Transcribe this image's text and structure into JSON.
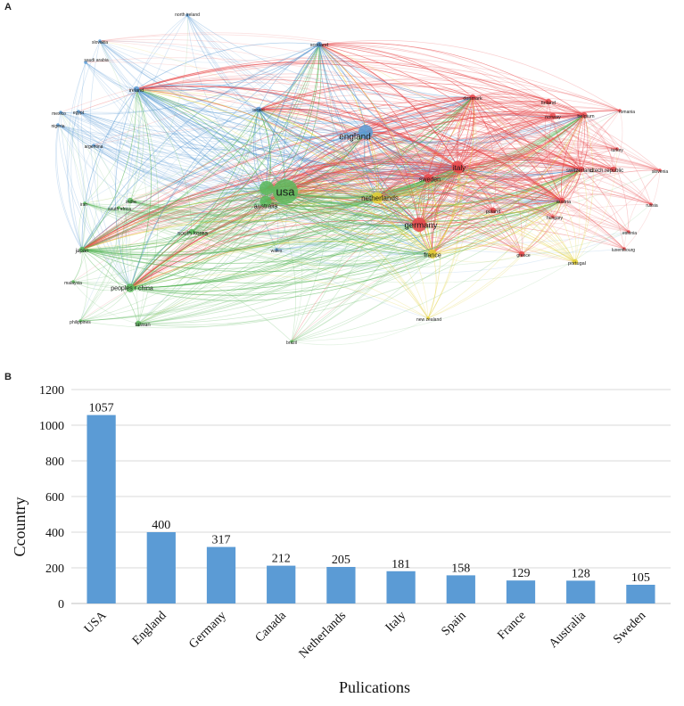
{
  "panels": {
    "a": "A",
    "b": "B"
  },
  "colors": {
    "blue": "#5b9bd5",
    "green": "#5cb85c",
    "red": "#e8474a",
    "yellow": "#e3cf34",
    "bar": "#5b9bd5",
    "grid": "#d9d9d9"
  },
  "network": {
    "nodes": [
      {
        "id": "usa",
        "label": "usa",
        "cluster": "green",
        "weight": 10
      },
      {
        "id": "england",
        "label": "england",
        "cluster": "blue",
        "weight": 6
      },
      {
        "id": "germany",
        "label": "germany",
        "cluster": "red",
        "weight": 5
      },
      {
        "id": "australia",
        "label": "australia",
        "cluster": "green",
        "weight": 4
      },
      {
        "id": "canada",
        "label": "",
        "cluster": "green",
        "weight": 5
      },
      {
        "id": "netherlands",
        "label": "netherlands",
        "cluster": "yellow",
        "weight": 4
      },
      {
        "id": "italy",
        "label": "italy",
        "cluster": "red",
        "weight": 4
      },
      {
        "id": "sweden",
        "label": "sweden",
        "cluster": "red",
        "weight": 3
      },
      {
        "id": "france",
        "label": "france",
        "cluster": "yellow",
        "weight": 3
      },
      {
        "id": "spain",
        "label": "",
        "cluster": "red",
        "weight": 3
      },
      {
        "id": "north-ireland",
        "label": "north ireland",
        "cluster": "blue",
        "weight": 1
      },
      {
        "id": "slovakia",
        "label": "slovakia",
        "cluster": "blue",
        "weight": 1
      },
      {
        "id": "saudi-arabia",
        "label": "saudi arabia",
        "cluster": "blue",
        "weight": 1
      },
      {
        "id": "scotland",
        "label": "scotland",
        "cluster": "blue",
        "weight": 2
      },
      {
        "id": "ireland",
        "label": "ireland",
        "cluster": "blue",
        "weight": 2
      },
      {
        "id": "mexico",
        "label": "mexico",
        "cluster": "blue",
        "weight": 1
      },
      {
        "id": "egypt",
        "label": "egypt",
        "cluster": "blue",
        "weight": 1
      },
      {
        "id": "nigeria",
        "label": "nigeria",
        "cluster": "blue",
        "weight": 1
      },
      {
        "id": "argentina",
        "label": "argentina",
        "cluster": "blue",
        "weight": 1
      },
      {
        "id": "israel",
        "label": "israel",
        "cluster": "blue",
        "weight": 2
      },
      {
        "id": "wales",
        "label": "wales",
        "cluster": "blue",
        "weight": 1
      },
      {
        "id": "iran",
        "label": "iran",
        "cluster": "green",
        "weight": 1
      },
      {
        "id": "south-africa",
        "label": "south africa",
        "cluster": "green",
        "weight": 1
      },
      {
        "id": "india",
        "label": "india",
        "cluster": "green",
        "weight": 2
      },
      {
        "id": "south-korea",
        "label": "south korea",
        "cluster": "green",
        "weight": 2
      },
      {
        "id": "japan",
        "label": "japan",
        "cluster": "green",
        "weight": 2
      },
      {
        "id": "malaysia",
        "label": "malaysia",
        "cluster": "green",
        "weight": 1
      },
      {
        "id": "peoples-r-china",
        "label": "peoples r china",
        "cluster": "green",
        "weight": 3
      },
      {
        "id": "philippines",
        "label": "philippines",
        "cluster": "green",
        "weight": 1
      },
      {
        "id": "taiwan",
        "label": "taiwan",
        "cluster": "green",
        "weight": 2
      },
      {
        "id": "brazil",
        "label": "brazil",
        "cluster": "green",
        "weight": 1
      },
      {
        "id": "denmark",
        "label": "denmark",
        "cluster": "red",
        "weight": 2
      },
      {
        "id": "finland",
        "label": "finland",
        "cluster": "red",
        "weight": 2
      },
      {
        "id": "norway",
        "label": "norway",
        "cluster": "red",
        "weight": 2
      },
      {
        "id": "belgium",
        "label": "belgium",
        "cluster": "red",
        "weight": 2
      },
      {
        "id": "romania",
        "label": "romania",
        "cluster": "red",
        "weight": 1
      },
      {
        "id": "turkey",
        "label": "turkey",
        "cluster": "red",
        "weight": 1
      },
      {
        "id": "switzerland",
        "label": "switzerland",
        "cluster": "red",
        "weight": 2
      },
      {
        "id": "czech-republic",
        "label": "czech republic",
        "cluster": "red",
        "weight": 2
      },
      {
        "id": "slovenia",
        "label": "slovenia",
        "cluster": "red",
        "weight": 1
      },
      {
        "id": "austria",
        "label": "austria",
        "cluster": "red",
        "weight": 2
      },
      {
        "id": "russia",
        "label": "russia",
        "cluster": "red",
        "weight": 1
      },
      {
        "id": "poland",
        "label": "poland",
        "cluster": "red",
        "weight": 2
      },
      {
        "id": "hungary",
        "label": "hungary",
        "cluster": "red",
        "weight": 1
      },
      {
        "id": "estonia",
        "label": "estonia",
        "cluster": "red",
        "weight": 1
      },
      {
        "id": "luxembourg",
        "label": "luxembourg",
        "cluster": "red",
        "weight": 1
      },
      {
        "id": "greece",
        "label": "greece",
        "cluster": "red",
        "weight": 2
      },
      {
        "id": "portugal",
        "label": "portugal",
        "cluster": "yellow",
        "weight": 2
      },
      {
        "id": "new-zealand",
        "label": "new zealand",
        "cluster": "yellow",
        "weight": 1
      }
    ]
  },
  "chart_data": {
    "type": "bar",
    "categories": [
      "USA",
      "England",
      "Germany",
      "Canada",
      "Netherlands",
      "Italy",
      "Spain",
      "France",
      "Australia",
      "Sweden"
    ],
    "values": [
      1057,
      400,
      317,
      212,
      205,
      181,
      158,
      129,
      128,
      105
    ],
    "xlabel": "Pulications",
    "ylabel": "Ccountry",
    "ylim": [
      0,
      1200
    ],
    "yticks": [
      "0",
      "200",
      "400",
      "600",
      "800",
      "1000",
      "1200"
    ],
    "grid": true
  }
}
